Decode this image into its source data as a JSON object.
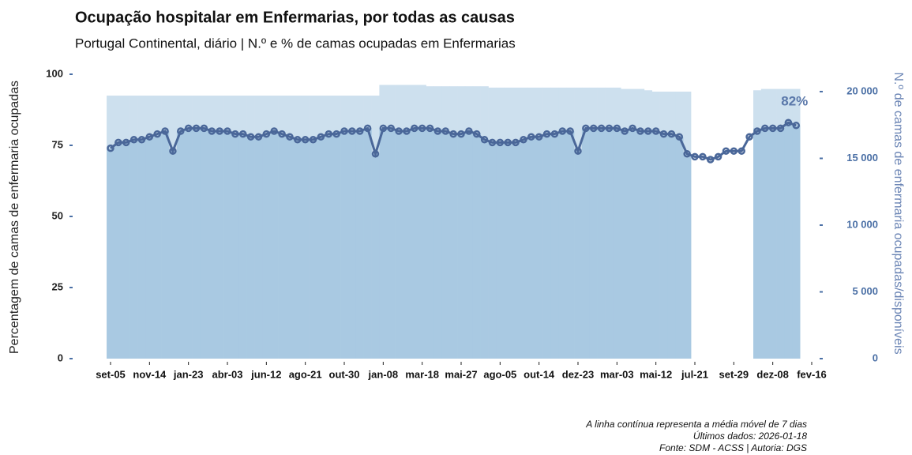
{
  "chart_data": {
    "type": "bar-line",
    "title": "Ocupação hospitalar em Enfermarias, por todas as causas",
    "subtitle": "Portugal Continental, diário | N.º e % de camas ocupadas em Enfermarias",
    "y_label": "Percentagem de camas de enfermaria ocupadas",
    "y2_label": "N.º de camas de enfermaria ocupadas/disponíveis",
    "annotation": "82%",
    "notes": [
      "A linha contínua representa a média móvel de 7 dias",
      "Últimos dados: 2026-01-18",
      "Fonte: SDM - ACSS | Autoria: DGS"
    ],
    "categories": [
      "set-05",
      null,
      null,
      null,
      null,
      "nov-14",
      null,
      null,
      null,
      null,
      "jan-23",
      null,
      null,
      null,
      null,
      "abr-03",
      null,
      null,
      null,
      null,
      "jun-12",
      null,
      null,
      null,
      null,
      "ago-21",
      null,
      null,
      null,
      null,
      "out-30",
      null,
      null,
      null,
      null,
      "jan-08",
      null,
      null,
      null,
      null,
      "mar-18",
      null,
      null,
      null,
      null,
      "mai-27",
      null,
      null,
      null,
      null,
      "ago-05",
      null,
      null,
      null,
      null,
      "out-14",
      null,
      null,
      null,
      null,
      "dez-23",
      null,
      null,
      null,
      null,
      "mar-03",
      null,
      null,
      null,
      null,
      "mai-12",
      null,
      null,
      null,
      null,
      "jul-21",
      null,
      null,
      null,
      null,
      "set-29",
      null,
      null,
      null,
      null,
      "dez-08",
      null,
      null,
      null,
      null,
      "fev-16"
    ],
    "series": [
      {
        "color": "#cde0ee",
        "axis": "y2",
        "values": [
          19700,
          19700,
          19700,
          19700,
          19700,
          19700,
          19700,
          19700,
          19700,
          19700,
          19700,
          19700,
          19700,
          19700,
          19700,
          19700,
          19700,
          19700,
          19700,
          19700,
          19700,
          19700,
          19700,
          19700,
          19700,
          19700,
          19700,
          19700,
          19700,
          19700,
          19700,
          19700,
          19700,
          19700,
          19700,
          20500,
          20500,
          20500,
          20500,
          20500,
          20500,
          20400,
          20400,
          20400,
          20400,
          20400,
          20400,
          20400,
          20400,
          20300,
          20300,
          20300,
          20300,
          20300,
          20300,
          20300,
          20300,
          20300,
          20300,
          20300,
          20300,
          20300,
          20300,
          20300,
          20300,
          20300,
          20200,
          20200,
          20200,
          20100,
          20000,
          20000,
          20000,
          20000,
          20000,
          null,
          null,
          null,
          null,
          null,
          null,
          null,
          null,
          20100,
          20200,
          20200,
          20200,
          20200,
          20200,
          null,
          null
        ]
      },
      {
        "color": "#a9c9e2",
        "axis": "y2",
        "values": [
          15760,
          16190,
          16190,
          16400,
          16400,
          16610,
          16830,
          17040,
          15550,
          17040,
          17250,
          17250,
          17250,
          17040,
          17040,
          17040,
          16830,
          16830,
          16610,
          16610,
          16830,
          17040,
          16830,
          16610,
          16400,
          16400,
          16400,
          16610,
          16830,
          16830,
          17040,
          17040,
          17040,
          17250,
          15340,
          17250,
          17250,
          17040,
          17040,
          17250,
          17250,
          17250,
          17040,
          17040,
          16830,
          16830,
          17040,
          16830,
          16400,
          16190,
          16190,
          16190,
          16190,
          16400,
          16610,
          16610,
          16830,
          16830,
          17040,
          17040,
          15550,
          17250,
          17250,
          17250,
          17250,
          17250,
          17040,
          17250,
          17040,
          17040,
          17040,
          16830,
          16830,
          16610,
          15340,
          null,
          null,
          null,
          null,
          null,
          null,
          null,
          null,
          17250,
          17250,
          17250,
          17250,
          17680,
          17470,
          null,
          null
        ]
      },
      {
        "color": "#4a6799",
        "axis": "y",
        "values": [
          74,
          76,
          76,
          77,
          77,
          78,
          79,
          80,
          73,
          80,
          81,
          81,
          81,
          80,
          80,
          80,
          79,
          79,
          78,
          78,
          79,
          80,
          79,
          78,
          77,
          77,
          77,
          78,
          79,
          79,
          80,
          80,
          80,
          81,
          72,
          81,
          81,
          80,
          80,
          81,
          81,
          81,
          80,
          80,
          79,
          79,
          80,
          79,
          77,
          76,
          76,
          76,
          76,
          77,
          78,
          78,
          79,
          79,
          80,
          80,
          73,
          81,
          81,
          81,
          81,
          81,
          80,
          81,
          80,
          80,
          80,
          79,
          79,
          78,
          72,
          71,
          71,
          70,
          71,
          73,
          73,
          73,
          78,
          80,
          81,
          81,
          81,
          83,
          82,
          null,
          null
        ]
      }
    ],
    "ylim": [
      0,
      100
    ],
    "yticks": [
      0,
      25,
      50,
      75,
      100
    ],
    "y2lim": [
      0,
      21300
    ],
    "y2ticks": [
      0,
      {
        "value": 5000,
        "label": "5 000"
      },
      {
        "value": 10000,
        "label": "10 000"
      },
      {
        "value": 15000,
        "label": "15 000"
      },
      {
        "value": 20000,
        "label": "20 000"
      }
    ]
  }
}
